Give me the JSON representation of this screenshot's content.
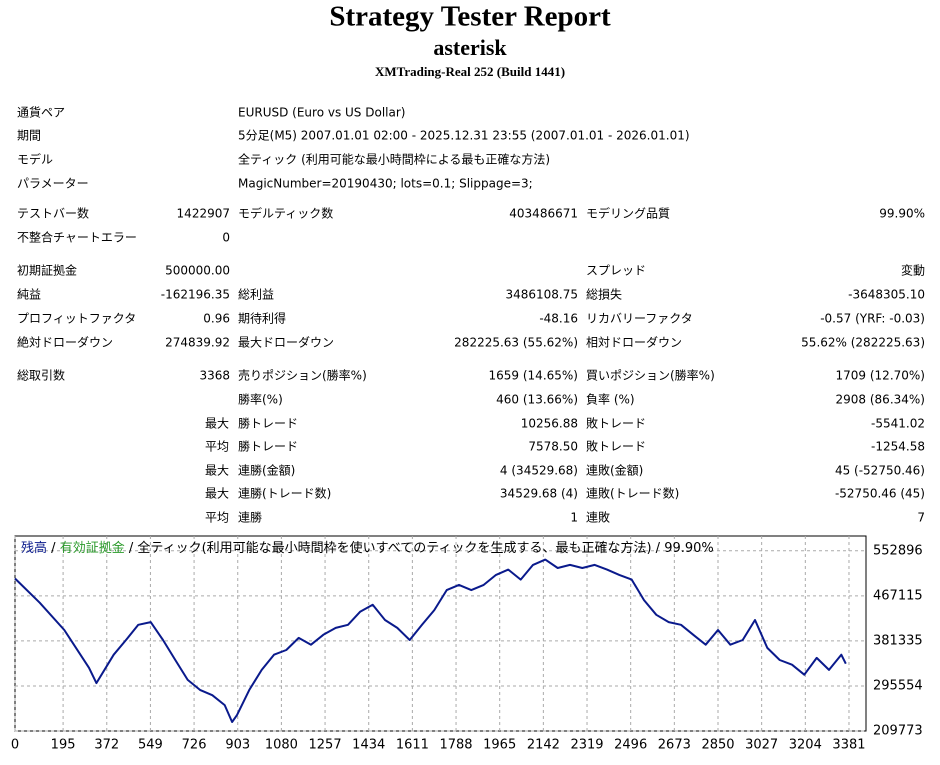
{
  "header": {
    "title": "Strategy Tester Report",
    "subtitle": "asterisk",
    "server": "XMTrading-Real 252 (Build 1441)"
  },
  "info": [
    {
      "label": "通貨ペア",
      "value": "EURUSD (Euro vs US Dollar)"
    },
    {
      "label": "期間",
      "value": "5分足(M5) 2007.01.01 02:00 - 2025.12.31 23:55 (2007.01.01 - 2026.01.01)"
    },
    {
      "label": "モデル",
      "value": "全ティック (利用可能な最小時間枠による最も正確な方法)"
    },
    {
      "label": "パラメーター",
      "value": "MagicNumber=20190430; lots=0.1; Slippage=3;"
    }
  ],
  "stats": [
    {
      "label": "テストバー数",
      "value": "1422907",
      "label2": "モデルティック数",
      "value2": "403486671",
      "label3": "モデリング品質",
      "value3": "99.90%"
    },
    {
      "label": "不整合チャートエラー",
      "value": "0"
    },
    {
      "label": "初期証拠金",
      "value": "500000.00",
      "label3": "スプレッド",
      "value3": "変動"
    },
    {
      "label": "純益",
      "value": "-162196.35",
      "label2": "総利益",
      "value2": "3486108.75",
      "label3": "総損失",
      "value3": "-3648305.10"
    },
    {
      "label": "プロフィットファクタ",
      "value": "0.96",
      "label2": "期待利得",
      "value2": "-48.16",
      "label3": "リカバリーファクタ",
      "value3": "-0.57 (YRF: -0.03)"
    },
    {
      "label": "絶対ドローダウン",
      "value": "274839.92",
      "label2": "最大ドローダウン",
      "value2": "282225.63 (55.62%)",
      "label3": "相対ドローダウン",
      "value3": "55.62% (282225.63)"
    },
    {
      "label": "総取引数",
      "value": "3368",
      "label2": "売りポジション(勝率%)",
      "value2": "1659 (14.65%)",
      "label3": "買いポジション(勝率%)",
      "value3": "1709 (12.70%)"
    },
    {
      "label2": "勝率(%)",
      "value2": "460 (13.66%)",
      "label3": "負率 (%)",
      "value3": "2908 (86.34%)"
    },
    {
      "prefix": "最大",
      "label2": "勝トレード",
      "value2": "10256.88",
      "label3": "敗トレード",
      "value3": "-5541.02"
    },
    {
      "prefix": "平均",
      "label2": "勝トレード",
      "value2": "7578.50",
      "label3": "敗トレード",
      "value3": "-1254.58"
    },
    {
      "prefix": "最大",
      "label2": "連勝(金額)",
      "value2": "4 (34529.68)",
      "label3": "連敗(金額)",
      "value3": "45 (-52750.46)"
    },
    {
      "prefix": "最大",
      "label2": "連勝(トレード数)",
      "value2": "34529.68 (4)",
      "label3": "連敗(トレード数)",
      "value3": "-52750.46 (45)"
    },
    {
      "prefix": "平均",
      "label2": "連勝",
      "value2": "1",
      "label3": "連敗",
      "value3": "7"
    }
  ],
  "chart_data": {
    "type": "line",
    "separator": "/",
    "equity_label": {
      "text": "有効証拠金",
      "color": "#2a9a2a"
    },
    "description": "全ティック(利用可能な最小時間枠を使いすべてのティックを生成する、最も正確な方法)",
    "quality": "99.90%",
    "x": [
      0,
      100,
      200,
      300,
      330,
      400,
      450,
      500,
      550,
      600,
      650,
      700,
      750,
      800,
      850,
      880,
      900,
      950,
      1000,
      1050,
      1100,
      1150,
      1200,
      1250,
      1300,
      1350,
      1400,
      1450,
      1500,
      1550,
      1600,
      1650,
      1700,
      1750,
      1800,
      1850,
      1900,
      1950,
      2000,
      2050,
      2100,
      2150,
      2200,
      2250,
      2300,
      2350,
      2400,
      2450,
      2500,
      2550,
      2600,
      2650,
      2700,
      2750,
      2800,
      2850,
      2900,
      2950,
      3000,
      3050,
      3100,
      3150,
      3200,
      3250,
      3300,
      3350,
      3368
    ],
    "series": [
      {
        "name": "残高",
        "color": "#0a1a8c",
        "values": [
          500000,
          454000,
          402000,
          330000,
          301000,
          355000,
          383000,
          412000,
          417000,
          383000,
          345000,
          307000,
          288000,
          278000,
          259000,
          227000,
          240000,
          288000,
          326000,
          355000,
          364000,
          387000,
          374000,
          393000,
          406000,
          412000,
          437000,
          450000,
          421000,
          406000,
          383000,
          412000,
          440000,
          478000,
          488000,
          478000,
          488000,
          507000,
          517000,
          498000,
          526000,
          536000,
          520000,
          526000,
          520000,
          526000,
          517000,
          507000,
          498000,
          459000,
          431000,
          417000,
          412000,
          393000,
          374000,
          402000,
          374000,
          383000,
          421000,
          368000,
          345000,
          336000,
          317000,
          349000,
          326000,
          355000,
          337804
        ]
      }
    ],
    "xlim": [
      0,
      3450
    ],
    "ylim": [
      209773,
      581000
    ],
    "xticks": [
      0,
      195,
      372,
      549,
      726,
      903,
      1080,
      1257,
      1434,
      1611,
      1788,
      1965,
      2142,
      2319,
      2496,
      2673,
      2850,
      3027,
      3204,
      3381
    ],
    "yticks": [
      209773,
      295554,
      381335,
      467115,
      552896
    ],
    "grid": true
  }
}
